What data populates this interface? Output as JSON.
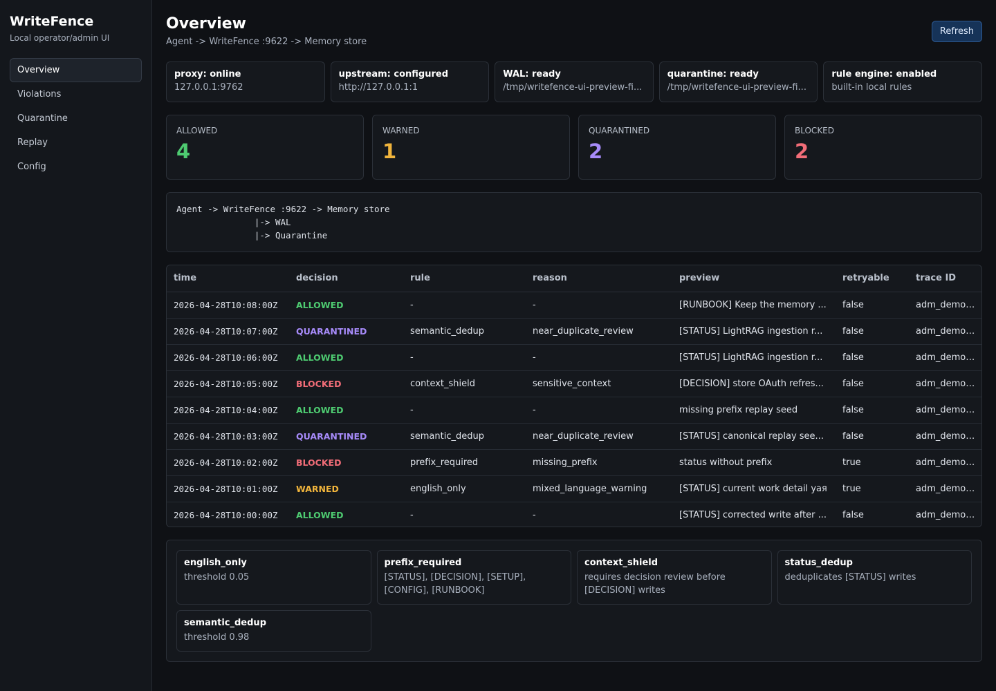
{
  "sidebar": {
    "brand": "WriteFence",
    "brand_sub": "Local operator/admin UI",
    "items": [
      {
        "label": "Overview",
        "active": true
      },
      {
        "label": "Violations",
        "active": false
      },
      {
        "label": "Quarantine",
        "active": false
      },
      {
        "label": "Replay",
        "active": false
      },
      {
        "label": "Config",
        "active": false
      }
    ]
  },
  "header": {
    "title": "Overview",
    "subtitle": "Agent -> WriteFence :9622 -> Memory store",
    "refresh_label": "Refresh"
  },
  "status": [
    {
      "title": "proxy: online",
      "detail": "127.0.0.1:9762"
    },
    {
      "title": "upstream: configured",
      "detail": "http://127.0.0.1:1"
    },
    {
      "title": "WAL: ready",
      "detail": "/tmp/writefence-ui-preview-fi..."
    },
    {
      "title": "quarantine: ready",
      "detail": "/tmp/writefence-ui-preview-fi..."
    },
    {
      "title": "rule engine: enabled",
      "detail": "built-in local rules"
    }
  ],
  "stats": [
    {
      "label": "ALLOWED",
      "value": "4",
      "color": "#4ecb71"
    },
    {
      "label": "WARNED",
      "value": "1",
      "color": "#f0b43c"
    },
    {
      "label": "QUARANTINED",
      "value": "2",
      "color": "#a78bfa"
    },
    {
      "label": "BLOCKED",
      "value": "2",
      "color": "#f26d78"
    }
  ],
  "flow": [
    "Agent -> WriteFence :9622 -> Memory store",
    "               |-> WAL",
    "               |-> Quarantine"
  ],
  "table": {
    "columns": [
      "time",
      "decision",
      "rule",
      "reason",
      "preview",
      "retryable",
      "trace ID"
    ],
    "decision_colors": {
      "ALLOWED": "#4ecb71",
      "QUARANTINED": "#a78bfa",
      "BLOCKED": "#f26d78",
      "WARNED": "#f0b43c"
    },
    "rows": [
      [
        "2026-04-28T10:08:00Z",
        "ALLOWED",
        "-",
        "-",
        "[RUNBOOK] Keep the memory ...",
        "false",
        "adm_demo_..."
      ],
      [
        "2026-04-28T10:07:00Z",
        "QUARANTINED",
        "semantic_dedup",
        "near_duplicate_review",
        "[STATUS] LightRAG ingestion r...",
        "false",
        "adm_demo_..."
      ],
      [
        "2026-04-28T10:06:00Z",
        "ALLOWED",
        "-",
        "-",
        "[STATUS] LightRAG ingestion r...",
        "false",
        "adm_demo_..."
      ],
      [
        "2026-04-28T10:05:00Z",
        "BLOCKED",
        "context_shield",
        "sensitive_context",
        "[DECISION] store OAuth refres...",
        "false",
        "adm_demo_..."
      ],
      [
        "2026-04-28T10:04:00Z",
        "ALLOWED",
        "-",
        "-",
        "missing prefix replay seed",
        "false",
        "adm_demo_..."
      ],
      [
        "2026-04-28T10:03:00Z",
        "QUARANTINED",
        "semantic_dedup",
        "near_duplicate_review",
        "[STATUS] canonical replay see...",
        "false",
        "adm_demo_..."
      ],
      [
        "2026-04-28T10:02:00Z",
        "BLOCKED",
        "prefix_required",
        "missing_prefix",
        "status without prefix",
        "true",
        "adm_demo_..."
      ],
      [
        "2026-04-28T10:01:00Z",
        "WARNED",
        "english_only",
        "mixed_language_warning",
        "[STATUS] current work detail уая",
        "true",
        "adm_demo_..."
      ],
      [
        "2026-04-28T10:00:00Z",
        "ALLOWED",
        "-",
        "-",
        "[STATUS] corrected write after ...",
        "false",
        "adm_demo_..."
      ]
    ]
  },
  "rules": [
    {
      "name": "english_only",
      "desc": "threshold 0.05"
    },
    {
      "name": "prefix_required",
      "desc": "[STATUS], [DECISION], [SETUP], [CONFIG], [RUNBOOK]"
    },
    {
      "name": "context_shield",
      "desc": "requires decision review before [DECISION] writes"
    },
    {
      "name": "status_dedup",
      "desc": "deduplicates [STATUS] writes"
    },
    {
      "name": "semantic_dedup",
      "desc": "threshold 0.98"
    }
  ]
}
